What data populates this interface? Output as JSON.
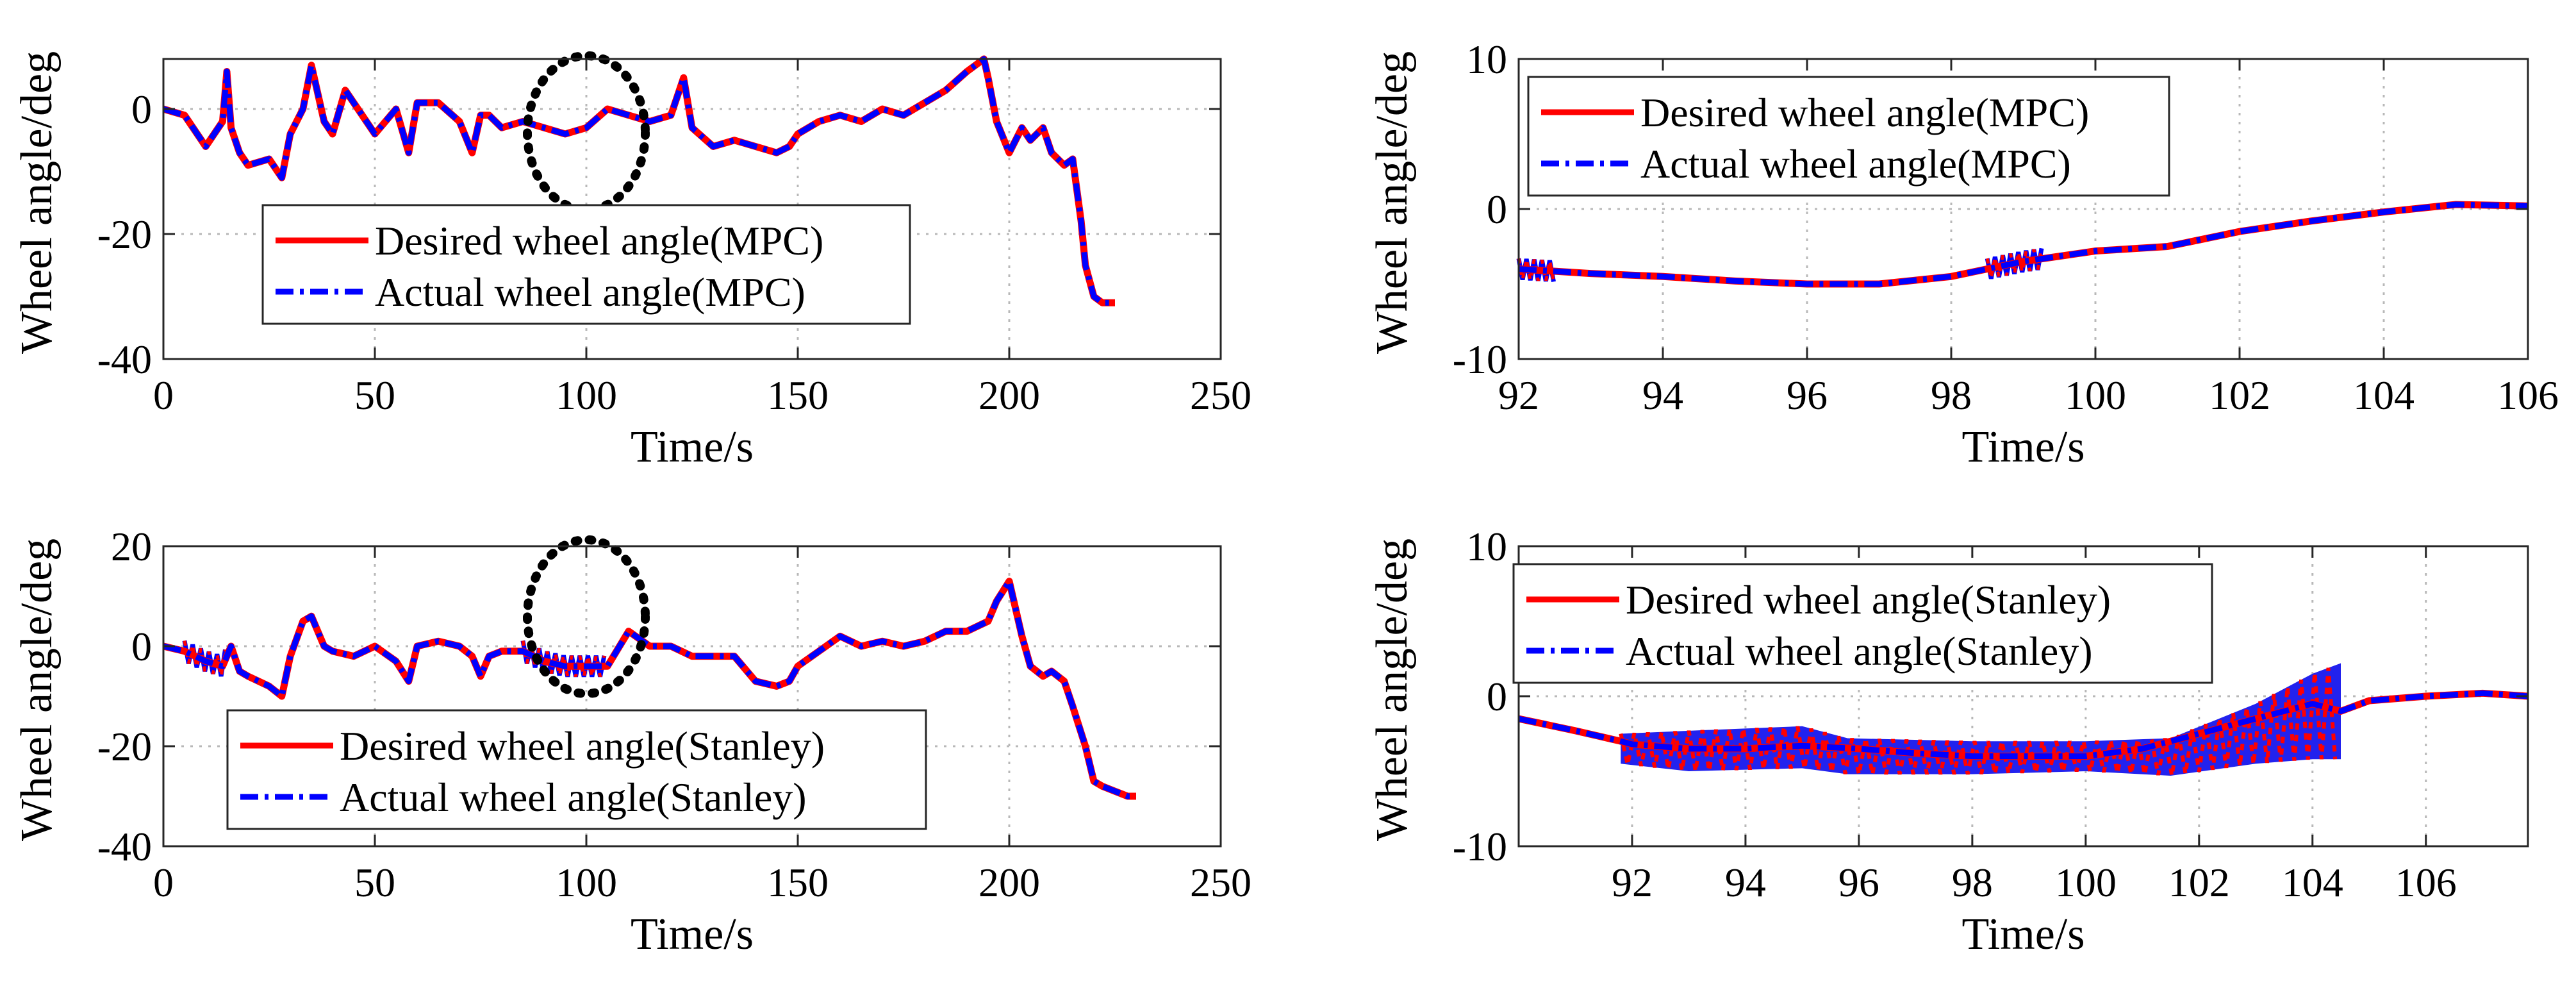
{
  "chart_data": [
    {
      "type": "line",
      "id": "mpc-full",
      "title": "",
      "xlabel": "Time/s",
      "ylabel": "Wheel angle/deg",
      "xlim": [
        0,
        250
      ],
      "ylim": [
        -40,
        8
      ],
      "xticks": [
        0,
        50,
        100,
        150,
        200,
        250
      ],
      "yticks": [
        -40,
        -20,
        0
      ],
      "xtick_labels": [
        "0",
        "50",
        "100",
        "150",
        "200",
        "250"
      ],
      "ytick_labels": [
        "-40",
        "-20",
        "0"
      ],
      "grid": true,
      "legend_position": "lower-left",
      "series": [
        {
          "name": "Desired wheel angle(MPC)",
          "color": "#ff0000",
          "style": "solid"
        },
        {
          "name": "Actual wheel angle(MPC)",
          "color": "#0000ff",
          "style": "dashdot"
        }
      ],
      "x": [
        0,
        5,
        10,
        14,
        15,
        16,
        18,
        20,
        25,
        28,
        30,
        33,
        35,
        38,
        40,
        43,
        45,
        48,
        50,
        55,
        58,
        60,
        65,
        70,
        73,
        75,
        77,
        80,
        85,
        90,
        95,
        100,
        105,
        110,
        115,
        120,
        123,
        125,
        130,
        135,
        140,
        145,
        148,
        150,
        155,
        160,
        165,
        170,
        175,
        180,
        185,
        190,
        194,
        195,
        197,
        200,
        203,
        205,
        208,
        210,
        213,
        215,
        217,
        218,
        220,
        222,
        225
      ],
      "values": [
        0,
        -1,
        -6,
        -2,
        6,
        -3,
        -7,
        -9,
        -8,
        -11,
        -4,
        0,
        7,
        -2,
        -4,
        3,
        1,
        -2,
        -4,
        0,
        -7,
        1,
        1,
        -2,
        -7,
        -1,
        -1,
        -3,
        -2,
        -3,
        -4,
        -3,
        0,
        -1,
        -2,
        -1,
        5,
        -3,
        -6,
        -5,
        -6,
        -7,
        -6,
        -4,
        -2,
        -1,
        -2,
        0,
        -1,
        1,
        3,
        6,
        8,
        5,
        -2,
        -7,
        -3,
        -5,
        -3,
        -7,
        -9,
        -8,
        -18,
        -25,
        -30,
        -31,
        -31
      ]
    },
    {
      "type": "line",
      "id": "mpc-zoom",
      "title": "",
      "xlabel": "Time/s",
      "ylabel": "Wheel angle/deg",
      "xlim": [
        92,
        106
      ],
      "ylim": [
        -10,
        10
      ],
      "xticks": [
        92,
        94,
        96,
        98,
        100,
        102,
        104,
        106
      ],
      "yticks": [
        -10,
        0,
        10
      ],
      "xtick_labels": [
        "92",
        "94",
        "96",
        "98",
        "100",
        "102",
        "104",
        "106"
      ],
      "ytick_labels": [
        "-10",
        "0",
        "10"
      ],
      "grid": true,
      "legend_position": "top-left",
      "series": [
        {
          "name": "Desired wheel angle(MPC)",
          "color": "#ff0000",
          "style": "solid"
        },
        {
          "name": "Actual wheel angle(MPC)",
          "color": "#0000ff",
          "style": "dashdot"
        }
      ],
      "x": [
        92,
        93,
        94,
        95,
        96,
        97,
        98,
        99,
        100,
        101,
        102,
        103,
        104,
        105,
        106
      ],
      "values": [
        -4,
        -4.3,
        -4.5,
        -4.8,
        -5,
        -5,
        -4.5,
        -3.5,
        -2.8,
        -2.5,
        -1.5,
        -0.8,
        -0.2,
        0.3,
        0.2
      ],
      "oscillation_ranges": [
        [
          92,
          92.5
        ],
        [
          98.5,
          99.3
        ]
      ]
    },
    {
      "type": "line",
      "id": "stanley-full",
      "title": "",
      "xlabel": "Time/s",
      "ylabel": "Wheel angle/deg",
      "xlim": [
        0,
        250
      ],
      "ylim": [
        -40,
        20
      ],
      "xticks": [
        0,
        50,
        100,
        150,
        200,
        250
      ],
      "yticks": [
        -40,
        -20,
        0,
        20
      ],
      "xtick_labels": [
        "0",
        "50",
        "100",
        "150",
        "200",
        "250"
      ],
      "ytick_labels": [
        "-40",
        "-20",
        "0",
        "20"
      ],
      "grid": true,
      "legend_position": "lower-left",
      "series": [
        {
          "name": "Desired wheel angle(Stanley)",
          "color": "#ff0000",
          "style": "solid"
        },
        {
          "name": "Actual wheel angle(Stanley)",
          "color": "#0000ff",
          "style": "dashdot"
        }
      ],
      "x": [
        0,
        5,
        10,
        14,
        16,
        18,
        20,
        25,
        28,
        30,
        33,
        35,
        38,
        40,
        45,
        50,
        55,
        58,
        60,
        65,
        70,
        73,
        75,
        77,
        80,
        85,
        90,
        95,
        100,
        105,
        110,
        115,
        120,
        125,
        130,
        135,
        140,
        145,
        148,
        150,
        155,
        160,
        165,
        170,
        175,
        180,
        185,
        190,
        195,
        197,
        200,
        203,
        205,
        208,
        210,
        213,
        215,
        218,
        220,
        222,
        225,
        228,
        230
      ],
      "values": [
        0,
        -1,
        -3,
        -4,
        0,
        -5,
        -6,
        -8,
        -10,
        -2,
        5,
        6,
        0,
        -1,
        -2,
        0,
        -3,
        -7,
        0,
        1,
        0,
        -2,
        -6,
        -2,
        -1,
        -1,
        -3,
        -4,
        -4,
        -4,
        3,
        0,
        0,
        -2,
        -2,
        -2,
        -7,
        -8,
        -7,
        -4,
        -1,
        2,
        0,
        1,
        0,
        1,
        3,
        3,
        5,
        9,
        13,
        2,
        -4,
        -6,
        -5,
        -7,
        -12,
        -20,
        -27,
        -28,
        -29,
        -30,
        -30
      ],
      "oscillation_ranges": [
        [
          5,
          15
        ],
        [
          85,
          105
        ]
      ]
    },
    {
      "type": "line",
      "id": "stanley-zoom",
      "title": "",
      "xlabel": "Time/s",
      "ylabel": "Wheel angle/deg",
      "xlim": [
        90,
        107.8
      ],
      "ylim": [
        -10,
        10
      ],
      "xticks": [
        92,
        94,
        96,
        98,
        100,
        102,
        104,
        106
      ],
      "yticks": [
        -10,
        0,
        10
      ],
      "xtick_labels": [
        "92",
        "94",
        "96",
        "98",
        "100",
        "102",
        "104",
        "106"
      ],
      "ytick_labels": [
        "-10",
        "0",
        "10"
      ],
      "grid": true,
      "legend_position": "top-left",
      "series": [
        {
          "name": "Desired wheel angle(Stanley)",
          "color": "#ff0000",
          "style": "solid"
        },
        {
          "name": "Actual wheel angle(Stanley)",
          "color": "#0000ff",
          "style": "dashdot"
        }
      ],
      "x": [
        90,
        91,
        91.8,
        92,
        93,
        94,
        95,
        96,
        97,
        98,
        99,
        100,
        101,
        102,
        103,
        104,
        104.5,
        105,
        106,
        107,
        107.8
      ],
      "values": [
        -1.5,
        -2.3,
        -3,
        -3.2,
        -3.5,
        -3.5,
        -3.3,
        -3.5,
        -3.8,
        -4,
        -4,
        -4,
        -3.5,
        -2.5,
        -1.5,
        -0.5,
        -1,
        -0.3,
        0,
        0.2,
        0
      ],
      "band_x": [
        91.8,
        93,
        95,
        95.8,
        98,
        100,
        101.5,
        103,
        104,
        104.5
      ],
      "band_upper": [
        -2.5,
        -2.3,
        -2,
        -2.8,
        -3,
        -3,
        -2.8,
        -0.5,
        1.5,
        2.2
      ],
      "band_lower": [
        -4.5,
        -5,
        -4.8,
        -5.2,
        -5.2,
        -5,
        -5.3,
        -4.5,
        -4.2,
        -4.2
      ]
    }
  ]
}
